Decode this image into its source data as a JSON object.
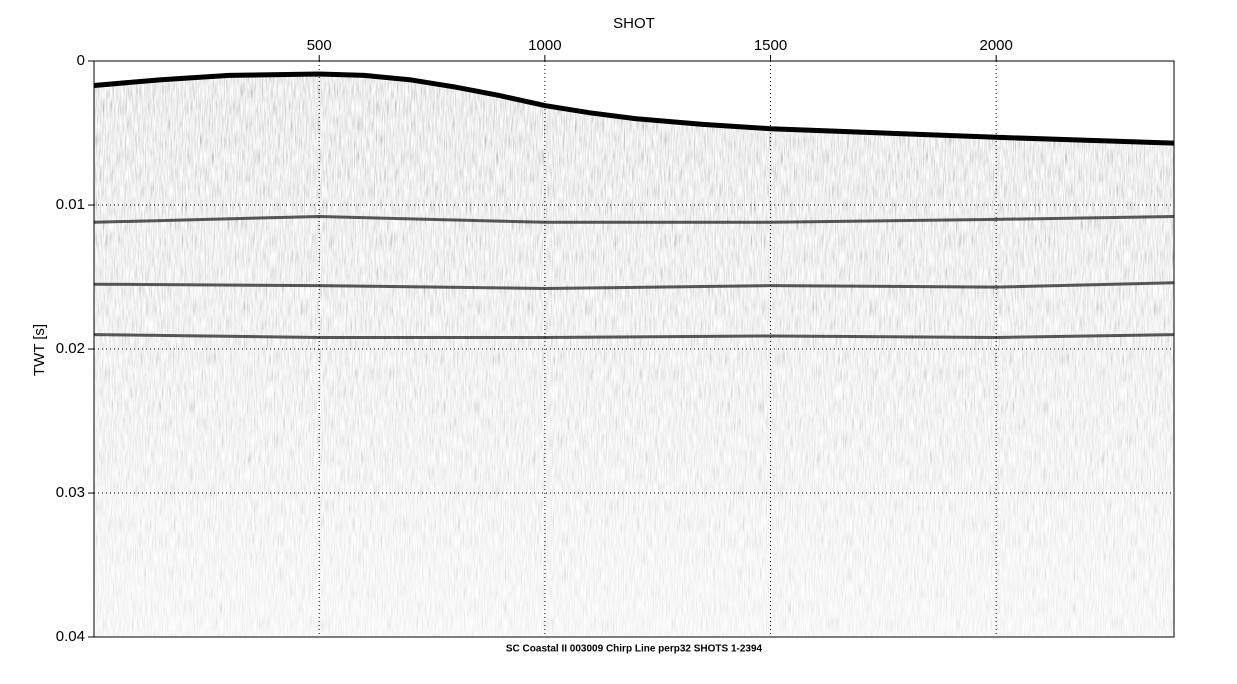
{
  "chart_data": {
    "type": "seismic",
    "title": "SHOT",
    "y_label": "TWT [s]",
    "caption": "SC Coastal II 003009 Chirp Line perp32 SHOTS 1-2394",
    "xlim": [
      1,
      2394
    ],
    "xticks": [
      500,
      1000,
      1500,
      2000
    ],
    "ylim": [
      0,
      0.04
    ],
    "yticks": [
      0,
      0.01,
      0.02,
      0.03,
      0.04
    ],
    "grid": true,
    "reflectors": [
      {
        "x": [
          1,
          150,
          300,
          500,
          600,
          700,
          800,
          900,
          1000,
          1100,
          1200,
          1350,
          1500,
          1750,
          2000,
          2200,
          2394
        ],
        "values": [
          0.0017,
          0.0013,
          0.001,
          0.0009,
          0.001,
          0.0013,
          0.0018,
          0.0024,
          0.0031,
          0.0036,
          0.004,
          0.0044,
          0.0047,
          0.005,
          0.0053,
          0.0055,
          0.0057
        ]
      },
      {
        "x": [
          1,
          500,
          1000,
          1500,
          2000,
          2394
        ],
        "values": [
          0.0112,
          0.0108,
          0.0112,
          0.0112,
          0.011,
          0.0108
        ]
      },
      {
        "x": [
          1,
          500,
          1000,
          1500,
          2000,
          2394
        ],
        "values": [
          0.0155,
          0.0156,
          0.0158,
          0.0156,
          0.0157,
          0.0154
        ]
      },
      {
        "x": [
          1,
          500,
          1000,
          1500,
          2000,
          2394
        ],
        "values": [
          0.019,
          0.0192,
          0.0192,
          0.0191,
          0.0192,
          0.019
        ]
      }
    ]
  }
}
